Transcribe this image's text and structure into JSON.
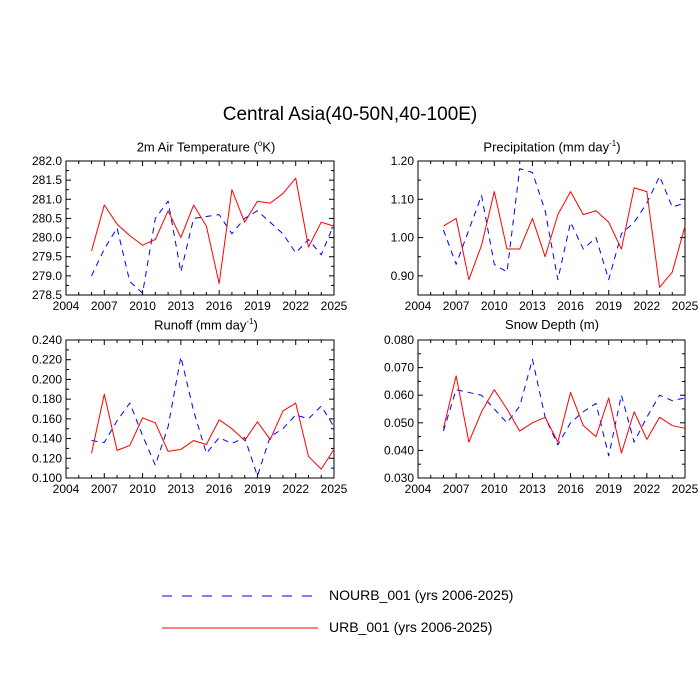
{
  "title": "Central Asia(40-50N,40-100E)",
  "colors": {
    "nourb": "#0000ff",
    "urb": "#ff0000",
    "axis": "#000000"
  },
  "legend": {
    "nourb_label": "NOURB_001 (yrs 2006-2025)",
    "urb_label": "URB_001 (yrs 2006-2025)"
  },
  "chart_data": [
    {
      "type": "line",
      "title": "2m Air Temperature (",
      "title_sup": "o",
      "title_suffix": "K)",
      "xlim": [
        2004,
        2025
      ],
      "ylim": [
        278.5,
        282.0
      ],
      "xticks": [
        2004,
        2007,
        2010,
        2013,
        2016,
        2019,
        2022,
        2025
      ],
      "yticks": [
        278.5,
        279.0,
        279.5,
        280.0,
        280.5,
        281.0,
        281.5,
        282.0
      ],
      "ytick_labels": [
        "278.5",
        "279.0",
        "279.5",
        "280.0",
        "280.5",
        "281.0",
        "281.5",
        "282.0"
      ],
      "x": [
        2006,
        2007,
        2008,
        2009,
        2010,
        2011,
        2012,
        2013,
        2014,
        2015,
        2016,
        2017,
        2018,
        2019,
        2020,
        2021,
        2022,
        2023,
        2024,
        2025
      ],
      "series": [
        {
          "name": "NOURB_001",
          "style": "dashed",
          "values": [
            279.0,
            279.7,
            280.25,
            278.85,
            278.55,
            280.5,
            280.95,
            279.1,
            280.5,
            280.55,
            280.6,
            280.1,
            280.5,
            280.7,
            280.4,
            280.1,
            279.6,
            279.95,
            279.55,
            280.35
          ]
        },
        {
          "name": "URB_001",
          "style": "solid",
          "values": [
            279.65,
            280.85,
            280.35,
            280.05,
            279.8,
            279.95,
            280.7,
            280.0,
            280.85,
            280.3,
            278.8,
            281.25,
            280.4,
            280.95,
            280.9,
            281.15,
            281.55,
            279.75,
            280.4,
            280.3
          ]
        }
      ]
    },
    {
      "type": "line",
      "title": "Precipitation (mm day",
      "title_sup": "-1",
      "title_suffix": ")",
      "xlim": [
        2004,
        2025
      ],
      "ylim": [
        0.85,
        1.2
      ],
      "xticks": [
        2004,
        2007,
        2010,
        2013,
        2016,
        2019,
        2022,
        2025
      ],
      "yticks": [
        0.9,
        1.0,
        1.1,
        1.2
      ],
      "ytick_labels": [
        "0.90",
        "1.00",
        "1.10",
        "1.20"
      ],
      "x": [
        2006,
        2007,
        2008,
        2009,
        2010,
        2011,
        2012,
        2013,
        2014,
        2015,
        2016,
        2017,
        2018,
        2019,
        2020,
        2021,
        2022,
        2023,
        2024,
        2025
      ],
      "series": [
        {
          "name": "NOURB_001",
          "style": "dashed",
          "values": [
            1.02,
            0.93,
            1.02,
            1.11,
            0.93,
            0.91,
            1.18,
            1.17,
            1.07,
            0.89,
            1.04,
            0.97,
            1.0,
            0.89,
            1.01,
            1.04,
            1.09,
            1.16,
            1.08,
            1.09
          ]
        },
        {
          "name": "URB_001",
          "style": "solid",
          "values": [
            1.03,
            1.05,
            0.89,
            0.98,
            1.12,
            0.97,
            0.97,
            1.05,
            0.95,
            1.06,
            1.12,
            1.06,
            1.07,
            1.04,
            0.97,
            1.13,
            1.12,
            0.87,
            0.91,
            1.03
          ]
        }
      ]
    },
    {
      "type": "line",
      "title": "Runoff (mm day",
      "title_sup": "-1",
      "title_suffix": ")",
      "xlim": [
        2004,
        2025
      ],
      "ylim": [
        0.1,
        0.24
      ],
      "xticks": [
        2004,
        2007,
        2010,
        2013,
        2016,
        2019,
        2022,
        2025
      ],
      "yticks": [
        0.1,
        0.12,
        0.14,
        0.16,
        0.18,
        0.2,
        0.22,
        0.24
      ],
      "ytick_labels": [
        "0.100",
        "0.120",
        "0.140",
        "0.160",
        "0.180",
        "0.200",
        "0.220",
        "0.240"
      ],
      "x": [
        2006,
        2007,
        2008,
        2009,
        2010,
        2011,
        2012,
        2013,
        2014,
        2015,
        2016,
        2017,
        2018,
        2019,
        2020,
        2021,
        2022,
        2023,
        2024,
        2025
      ],
      "series": [
        {
          "name": "NOURB_001",
          "style": "dashed",
          "values": [
            0.138,
            0.136,
            0.158,
            0.176,
            0.143,
            0.113,
            0.152,
            0.223,
            0.168,
            0.125,
            0.141,
            0.135,
            0.141,
            0.102,
            0.142,
            0.15,
            0.164,
            0.16,
            0.173,
            0.152
          ]
        },
        {
          "name": "URB_001",
          "style": "solid",
          "values": [
            0.125,
            0.185,
            0.128,
            0.133,
            0.161,
            0.156,
            0.127,
            0.129,
            0.138,
            0.134,
            0.159,
            0.15,
            0.138,
            0.157,
            0.139,
            0.168,
            0.176,
            0.122,
            0.109,
            0.129
          ]
        }
      ]
    },
    {
      "type": "line",
      "title": "Snow Depth (m)",
      "title_sup": "",
      "title_suffix": "",
      "xlim": [
        2004,
        2025
      ],
      "ylim": [
        0.03,
        0.08
      ],
      "xticks": [
        2004,
        2007,
        2010,
        2013,
        2016,
        2019,
        2022,
        2025
      ],
      "yticks": [
        0.03,
        0.04,
        0.05,
        0.06,
        0.07,
        0.08
      ],
      "ytick_labels": [
        "0.030",
        "0.040",
        "0.050",
        "0.060",
        "0.070",
        "0.080"
      ],
      "x": [
        2006,
        2007,
        2008,
        2009,
        2010,
        2011,
        2012,
        2013,
        2014,
        2015,
        2016,
        2017,
        2018,
        2019,
        2020,
        2021,
        2022,
        2023,
        2024,
        2025
      ],
      "series": [
        {
          "name": "NOURB_001",
          "style": "dashed",
          "values": [
            0.047,
            0.062,
            0.061,
            0.06,
            0.055,
            0.05,
            0.056,
            0.073,
            0.052,
            0.042,
            0.05,
            0.054,
            0.057,
            0.038,
            0.06,
            0.043,
            0.052,
            0.06,
            0.058,
            0.059
          ]
        },
        {
          "name": "URB_001",
          "style": "solid",
          "values": [
            0.048,
            0.067,
            0.043,
            0.054,
            0.062,
            0.055,
            0.047,
            0.05,
            0.052,
            0.043,
            0.061,
            0.049,
            0.045,
            0.059,
            0.039,
            0.054,
            0.044,
            0.052,
            0.049,
            0.048
          ]
        }
      ]
    }
  ]
}
